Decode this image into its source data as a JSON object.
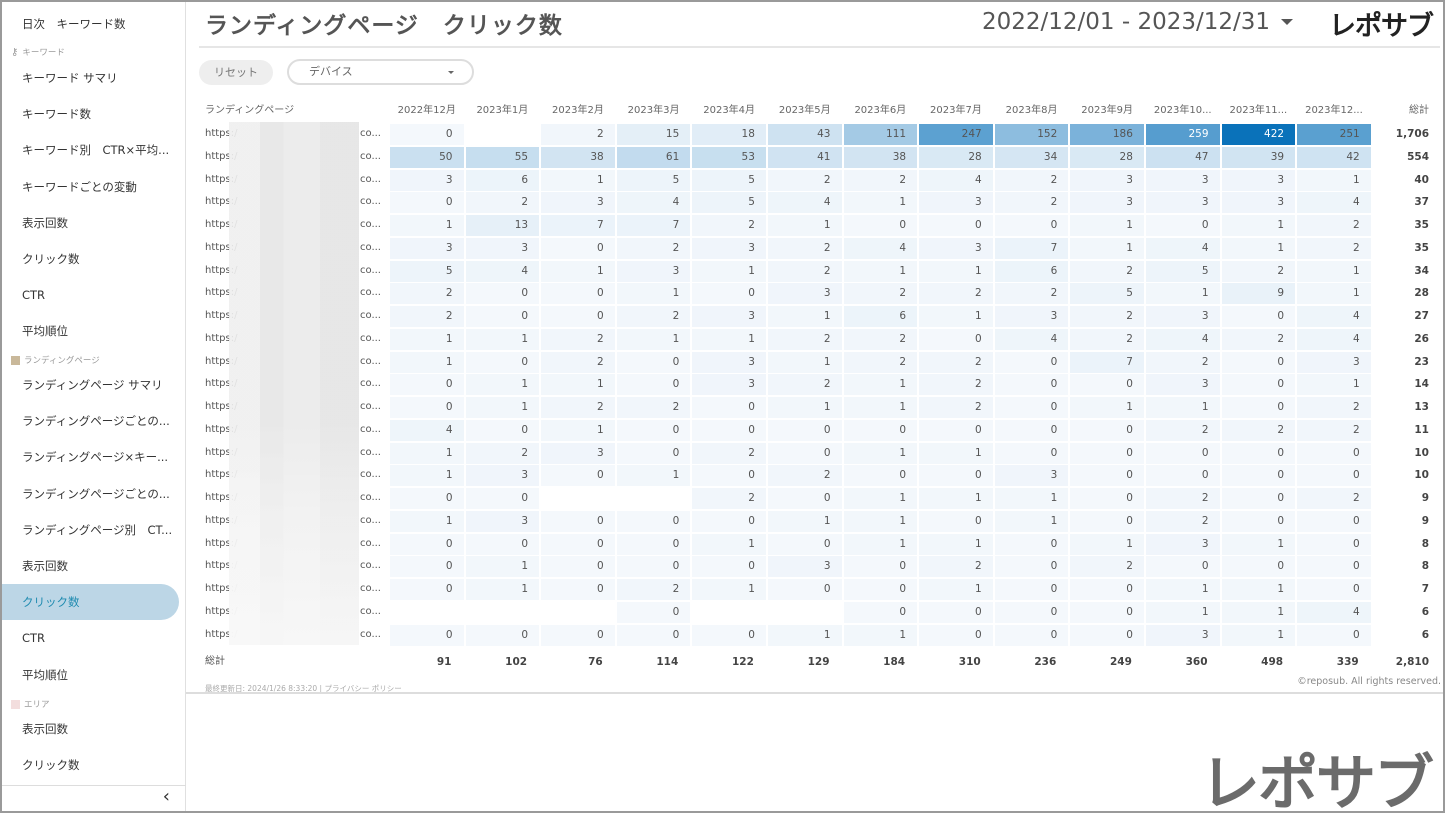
{
  "sidebar": {
    "items_top": [
      {
        "label": "日次　キーワード数"
      }
    ],
    "section_keyword": "キーワード",
    "keyword_items": [
      "キーワード サマリ",
      "キーワード数",
      "キーワード別　CTR×平均...",
      "キーワードごとの変動",
      "表示回数",
      "クリック数",
      "CTR",
      "平均順位"
    ],
    "section_lp": "ランディングページ",
    "lp_items": [
      "ランディングページ サマリ",
      "ランディングページごとの...",
      "ランディングページ×キー...",
      "ランディングページごとの...",
      "ランディングページ別　CT...",
      "表示回数",
      "クリック数",
      "CTR",
      "平均順位"
    ],
    "section_area": "エリア",
    "area_items": [
      "表示回数",
      "クリック数"
    ],
    "active": "クリック数",
    "collapse_icon": "chevron-left-icon"
  },
  "header": {
    "title": "ランディングページ　クリック数",
    "date_range": "2022/12/01 - 2023/12/31",
    "logo": "レポサブ"
  },
  "filters": {
    "reset": "リセット",
    "device": "デバイス"
  },
  "table": {
    "col_header": "ランディングページ",
    "months": [
      "2022年12月",
      "2023年1月",
      "2023年2月",
      "2023年3月",
      "2023年4月",
      "2023年5月",
      "2023年6月",
      "2023年7月",
      "2023年8月",
      "2023年9月",
      "2023年10...",
      "2023年11...",
      "2023年12..."
    ],
    "total_header": "総計",
    "url_prefix": "https:/",
    "url_suffix": "co...",
    "rows": [
      {
        "v": [
          0,
          null,
          2,
          15,
          18,
          43,
          111,
          247,
          152,
          186,
          259,
          422,
          251
        ],
        "t": "1,706"
      },
      {
        "v": [
          50,
          55,
          38,
          61,
          53,
          41,
          38,
          28,
          34,
          28,
          47,
          39,
          42
        ],
        "t": "554"
      },
      {
        "v": [
          3,
          6,
          1,
          5,
          5,
          2,
          2,
          4,
          2,
          3,
          3,
          3,
          1
        ],
        "t": "40"
      },
      {
        "v": [
          0,
          2,
          3,
          4,
          5,
          4,
          1,
          3,
          2,
          3,
          3,
          3,
          4
        ],
        "t": "37"
      },
      {
        "v": [
          1,
          13,
          7,
          7,
          2,
          1,
          0,
          0,
          0,
          1,
          0,
          1,
          2
        ],
        "t": "35"
      },
      {
        "v": [
          3,
          3,
          0,
          2,
          3,
          2,
          4,
          3,
          7,
          1,
          4,
          1,
          2
        ],
        "t": "35"
      },
      {
        "v": [
          5,
          4,
          1,
          3,
          1,
          2,
          1,
          1,
          6,
          2,
          5,
          2,
          1
        ],
        "t": "34"
      },
      {
        "v": [
          2,
          0,
          0,
          1,
          0,
          3,
          2,
          2,
          2,
          5,
          1,
          9,
          1
        ],
        "t": "28"
      },
      {
        "v": [
          2,
          0,
          0,
          2,
          3,
          1,
          6,
          1,
          3,
          2,
          3,
          0,
          4
        ],
        "t": "27"
      },
      {
        "v": [
          1,
          1,
          2,
          1,
          1,
          2,
          2,
          0,
          4,
          2,
          4,
          2,
          4
        ],
        "t": "26"
      },
      {
        "v": [
          1,
          0,
          2,
          0,
          3,
          1,
          2,
          2,
          0,
          7,
          2,
          0,
          3
        ],
        "t": "23"
      },
      {
        "v": [
          0,
          1,
          1,
          0,
          3,
          2,
          1,
          2,
          0,
          0,
          3,
          0,
          1
        ],
        "t": "14"
      },
      {
        "v": [
          0,
          1,
          2,
          2,
          0,
          1,
          1,
          2,
          0,
          1,
          1,
          0,
          2
        ],
        "t": "13"
      },
      {
        "v": [
          4,
          0,
          1,
          0,
          0,
          0,
          0,
          0,
          0,
          0,
          2,
          2,
          2
        ],
        "t": "11"
      },
      {
        "v": [
          1,
          2,
          3,
          0,
          2,
          0,
          1,
          1,
          0,
          0,
          0,
          0,
          0
        ],
        "t": "10"
      },
      {
        "v": [
          1,
          3,
          0,
          1,
          0,
          2,
          0,
          0,
          3,
          0,
          0,
          0,
          0
        ],
        "t": "10"
      },
      {
        "v": [
          0,
          0,
          null,
          null,
          2,
          0,
          1,
          1,
          1,
          0,
          2,
          0,
          2
        ],
        "t": "9"
      },
      {
        "v": [
          1,
          3,
          0,
          0,
          0,
          1,
          1,
          0,
          1,
          0,
          2,
          0,
          0
        ],
        "t": "9"
      },
      {
        "v": [
          0,
          0,
          0,
          0,
          1,
          0,
          1,
          1,
          0,
          1,
          3,
          1,
          0
        ],
        "t": "8"
      },
      {
        "v": [
          0,
          1,
          0,
          0,
          0,
          3,
          0,
          2,
          0,
          2,
          0,
          0,
          0
        ],
        "t": "8"
      },
      {
        "v": [
          0,
          1,
          0,
          2,
          1,
          0,
          0,
          1,
          0,
          0,
          1,
          1,
          0
        ],
        "t": "7"
      },
      {
        "v": [
          null,
          null,
          null,
          0,
          null,
          null,
          0,
          0,
          0,
          0,
          1,
          1,
          4
        ],
        "t": "6"
      },
      {
        "v": [
          0,
          0,
          0,
          0,
          0,
          1,
          1,
          0,
          0,
          0,
          3,
          1,
          0
        ],
        "t": "6"
      }
    ],
    "total_label": "総計",
    "totals": [
      "91",
      "102",
      "76",
      "114",
      "122",
      "129",
      "184",
      "310",
      "236",
      "249",
      "360",
      "498",
      "339"
    ],
    "grand_total": "2,810",
    "max_value": 422
  },
  "footer": {
    "updated": "最終更新日: 2024/1/26 8:33:20",
    "privacy": "プライバシー ポリシー",
    "copyright": "©reposub. All rights reserved."
  },
  "watermark_logo": "レポサブ",
  "colors": {
    "heat_low": "#f4f8fc",
    "heat_high": "#0a72ba",
    "active_bg": "#bcd6e6",
    "active_text": "#1f8bb0"
  }
}
